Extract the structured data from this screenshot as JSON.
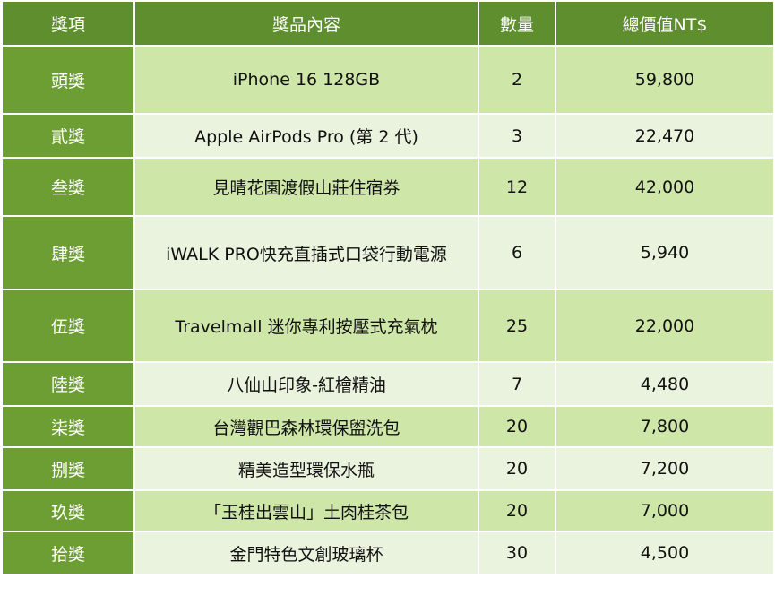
{
  "table": {
    "header": [
      "獎項",
      "獎品內容",
      "數量",
      "總價值NT$"
    ],
    "rows": [
      [
        "頭獎",
        "iPhone 16 128GB",
        "2",
        "59,800"
      ],
      [
        "貳獎",
        "Apple AirPods Pro (第 2 代)",
        "3",
        "22,470"
      ],
      [
        "叁獎",
        "見晴花園渡假山莊住宿券",
        "12",
        "42,000"
      ],
      [
        "肆獎",
        "iWALK PRO快充直插式口袋行動電源",
        "6",
        "5,940"
      ],
      [
        "伍獎",
        "Travelmall 迷你專利按壓式充氣枕",
        "25",
        "22,000"
      ],
      [
        "陸獎",
        "八仙山印象-紅檜精油",
        "7",
        "4,480"
      ],
      [
        "柒獎",
        "台灣觀巴森林環保盥洗包",
        "20",
        "7,800"
      ],
      [
        "捌獎",
        "精美造型環保水瓶",
        "20",
        "7,200"
      ],
      [
        "玖獎",
        "「玉桂出雲山」土肉桂茶包",
        "20",
        "7,000"
      ],
      [
        "拾獎",
        "金門特色文創玻璃杯",
        "30",
        "4,500"
      ]
    ]
  }
}
